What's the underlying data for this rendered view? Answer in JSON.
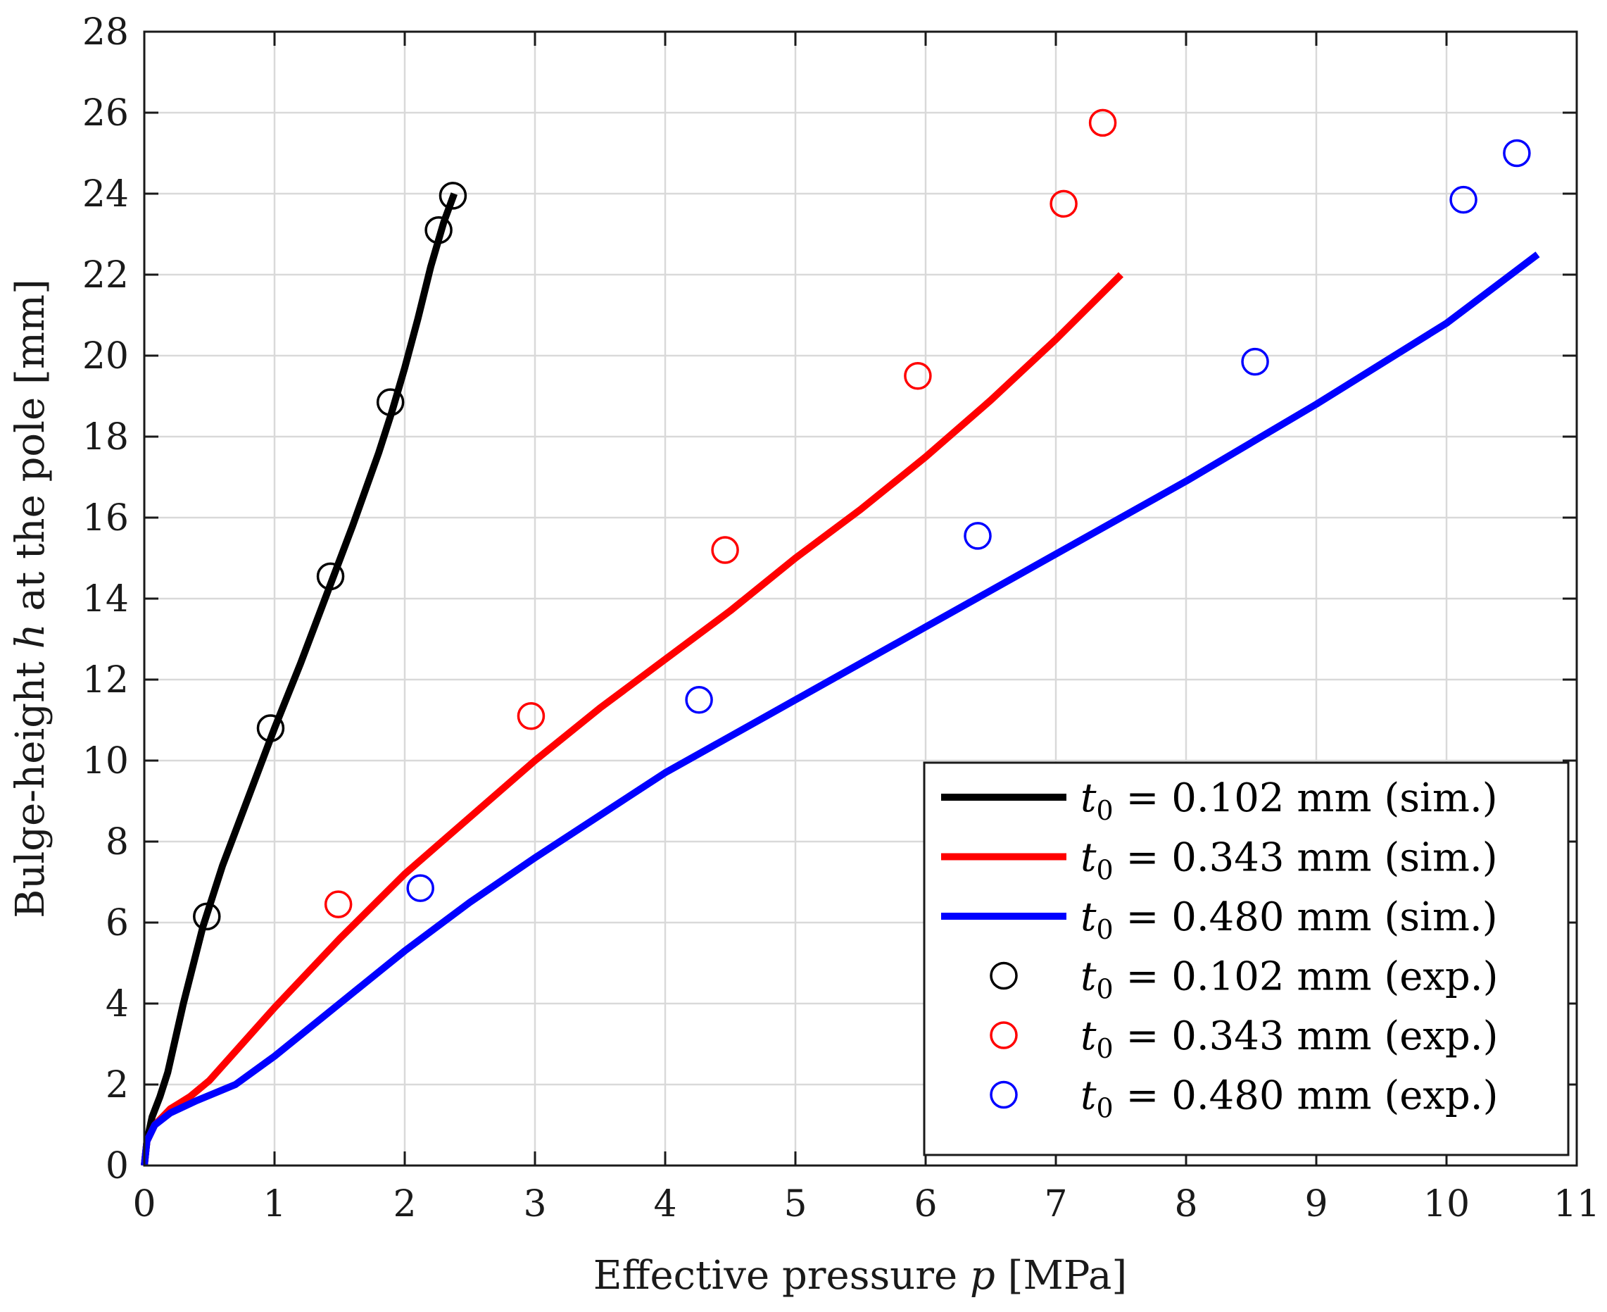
{
  "chart_data": {
    "type": "line",
    "title": "",
    "xlabel": "Effective pressure p [MPa]",
    "xlabel_parts": [
      "Effective pressure ",
      "p",
      " [MPa]"
    ],
    "ylabel": "Bulge-height h at the pole [mm]",
    "ylabel_parts": [
      "Bulge-height ",
      "h",
      " at the pole [mm]"
    ],
    "xlim": [
      0,
      11
    ],
    "ylim": [
      0,
      28
    ],
    "xticks": [
      0,
      1,
      2,
      3,
      4,
      5,
      6,
      7,
      8,
      9,
      10,
      11
    ],
    "yticks": [
      0,
      2,
      4,
      6,
      8,
      10,
      12,
      14,
      16,
      18,
      20,
      22,
      24,
      26,
      28
    ],
    "grid": true,
    "legend_position": "bottom-right",
    "series": [
      {
        "name": "t0 = 0.102 mm (sim.)",
        "legend_var": "t",
        "legend_sub": "0",
        "legend_rest": " = 0.102 mm (sim.)",
        "kind": "line",
        "color": "#000000",
        "x": [
          0,
          0.02,
          0.06,
          0.12,
          0.18,
          0.3,
          0.45,
          0.6,
          0.8,
          1.0,
          1.2,
          1.4,
          1.6,
          1.8,
          1.9,
          2.0,
          2.1,
          2.2,
          2.3,
          2.38
        ],
        "y": [
          0,
          0.6,
          1.2,
          1.7,
          2.3,
          4.0,
          5.9,
          7.4,
          9.1,
          10.8,
          12.4,
          14.1,
          15.8,
          17.6,
          18.6,
          19.7,
          20.9,
          22.2,
          23.3,
          24.0
        ]
      },
      {
        "name": "t0 = 0.343 mm (sim.)",
        "legend_var": "t",
        "legend_sub": "0",
        "legend_rest": " = 0.343 mm (sim.)",
        "kind": "line",
        "color": "#ff0000",
        "x": [
          0,
          0.02,
          0.08,
          0.2,
          0.35,
          0.5,
          0.75,
          1.0,
          1.5,
          2.0,
          2.5,
          3.0,
          3.5,
          4.0,
          4.5,
          5.0,
          5.5,
          6.0,
          6.5,
          7.0,
          7.5
        ],
        "y": [
          0,
          0.6,
          1.0,
          1.4,
          1.7,
          2.1,
          3.0,
          3.9,
          5.6,
          7.2,
          8.6,
          10.0,
          11.3,
          12.5,
          13.7,
          15.0,
          16.2,
          17.5,
          18.9,
          20.4,
          22.0
        ]
      },
      {
        "name": "t0 = 0.480 mm (sim.)",
        "legend_var": "t",
        "legend_sub": "0",
        "legend_rest": " = 0.480 mm (sim.)",
        "kind": "line",
        "color": "#0000ff",
        "x": [
          0,
          0.02,
          0.08,
          0.2,
          0.4,
          0.7,
          1.0,
          1.5,
          2.0,
          2.5,
          3.0,
          4.0,
          5.0,
          6.0,
          7.0,
          8.0,
          9.0,
          10.0,
          10.7
        ],
        "y": [
          0,
          0.6,
          1.0,
          1.3,
          1.6,
          2.0,
          2.7,
          4.0,
          5.3,
          6.5,
          7.6,
          9.7,
          11.5,
          13.3,
          15.1,
          16.9,
          18.8,
          20.8,
          22.5
        ]
      },
      {
        "name": "t0 = 0.102 mm (exp.)",
        "legend_var": "t",
        "legend_sub": "0",
        "legend_rest": " = 0.102 mm (exp.)",
        "kind": "marker",
        "color": "#000000",
        "x": [
          0.48,
          0.97,
          1.43,
          1.89,
          2.26,
          2.37
        ],
        "y": [
          6.15,
          10.8,
          14.55,
          18.85,
          23.1,
          23.95
        ]
      },
      {
        "name": "t0 = 0.343 mm (exp.)",
        "legend_var": "t",
        "legend_sub": "0",
        "legend_rest": " = 0.343 mm (exp.)",
        "kind": "marker",
        "color": "#ff0000",
        "x": [
          1.49,
          2.97,
          4.46,
          5.94,
          7.06,
          7.36
        ],
        "y": [
          6.45,
          11.1,
          15.2,
          19.5,
          23.75,
          25.75
        ]
      },
      {
        "name": "t0 = 0.480 mm (exp.)",
        "legend_var": "t",
        "legend_sub": "0",
        "legend_rest": " = 0.480 mm (exp.)",
        "kind": "marker",
        "color": "#0000ff",
        "x": [
          2.12,
          4.26,
          6.4,
          8.53,
          10.13,
          10.54
        ],
        "y": [
          6.85,
          11.5,
          15.55,
          19.85,
          23.85,
          25.0
        ]
      }
    ]
  }
}
